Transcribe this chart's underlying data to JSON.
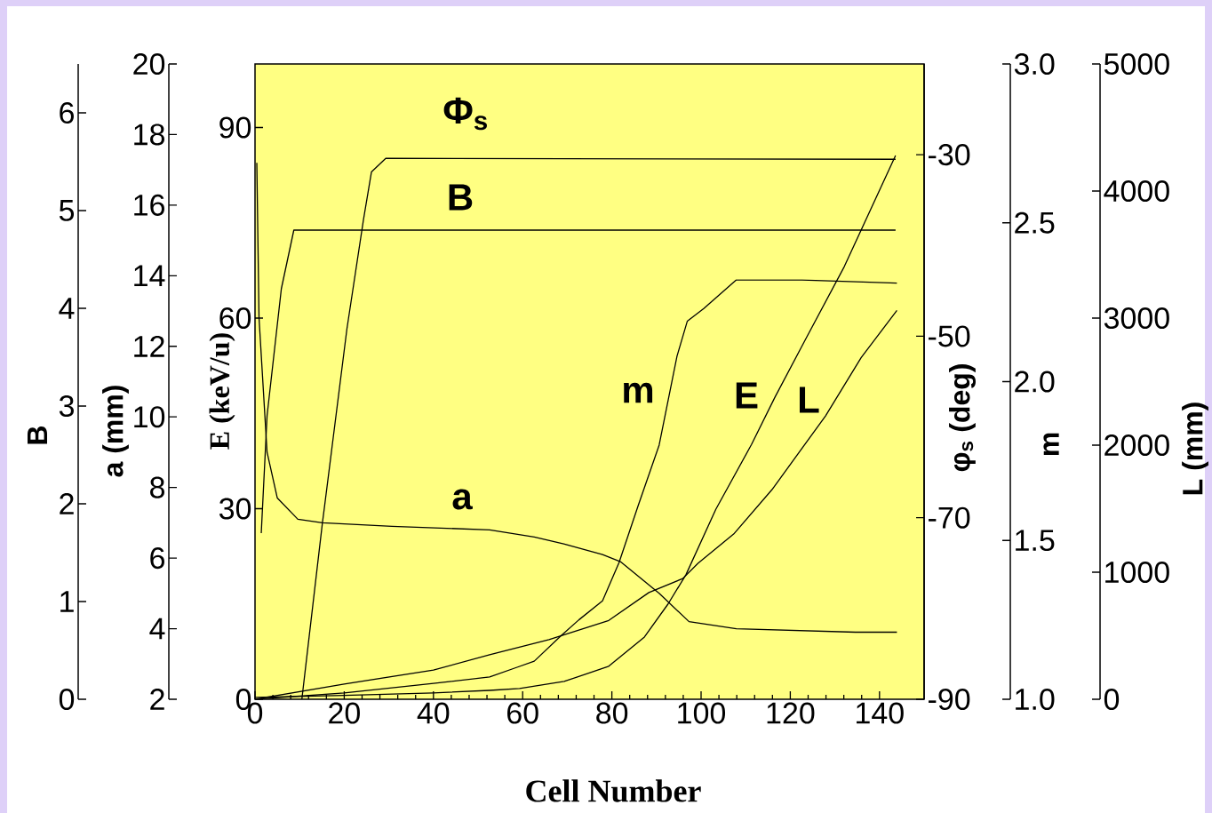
{
  "chart_data": [
    {
      "type": "line",
      "xlabel": "Cell Number",
      "xlim": [
        0,
        150
      ],
      "xticks": [
        0,
        20,
        40,
        60,
        80,
        100,
        120,
        140
      ],
      "ylabel": "E (keV/u)",
      "ylim": [
        0,
        100
      ],
      "yticks": [
        0,
        30,
        60,
        90
      ],
      "y2label": "φ$_{s}$ (deg)",
      "y2lim": [
        -90,
        -20
      ],
      "y2ticks": [
        -90,
        -70,
        -50,
        -30
      ],
      "y3label": "m",
      "y3lim": [
        1,
        3
      ],
      "y3ticks": [
        {
          "value": 1,
          "label": "1.0"
        },
        {
          "value": 1.5,
          "label": "1.5"
        },
        {
          "value": 2,
          "label": "2.0"
        },
        {
          "value": 2.5,
          "label": "2.5"
        },
        {
          "value": 3,
          "label": "3.0"
        }
      ],
      "series": [
        {
          "name": "Φ$_{s}$",
          "color": "#000000",
          "axis": "y2",
          "x": [
            10.5,
            15.1,
            15.6,
            20.6,
            24.3,
            26.1,
            29.3,
            143.6
          ],
          "values": [
            -90,
            -70.6,
            -68.7,
            -49.2,
            -37.2,
            -31.9,
            -30.4,
            -30.5
          ]
        },
        {
          "name": "m",
          "color": "#000000",
          "axis": "y3",
          "x": [
            0,
            20,
            40,
            52.6,
            58.6,
            62.6,
            68.6,
            72.6,
            77.9,
            81.6,
            85.9,
            90.6,
            92.6,
            94.6,
            96.9,
            100.6,
            107.9,
            122.6,
            143.9
          ],
          "values": [
            1.0,
            1.02,
            1.05,
            1.07,
            1.1,
            1.12,
            1.2,
            1.25,
            1.31,
            1.43,
            1.61,
            1.8,
            1.94,
            2.08,
            2.19,
            2.23,
            2.32,
            2.32,
            2.31
          ]
        },
        {
          "name": "E",
          "color": "#000000",
          "x": [
            0,
            20,
            40,
            52.6,
            59.3,
            69.3,
            79.3,
            87.3,
            92.6,
            96.6,
            103.3,
            111.3,
            116.6,
            123.3,
            132.1,
            143.6
          ],
          "values": [
            0.3,
            0.6,
            1.0,
            1.4,
            1.7,
            2.8,
            5.2,
            9.8,
            15,
            19.6,
            29.9,
            40.1,
            47.6,
            56.5,
            68.1,
            85.6
          ]
        }
      ]
    },
    {
      "type": "line",
      "xlim": [
        0,
        150
      ],
      "tick_labels": "y",
      "ylabel": "a (mm)",
      "ylim": [
        2,
        20
      ],
      "yticks": [
        2,
        4,
        6,
        8,
        10,
        12,
        14,
        16,
        18,
        20
      ],
      "y2label": "B",
      "y2lim": [
        0,
        6.5
      ],
      "y2ticks": [
        0,
        1,
        2,
        3,
        4,
        5,
        6
      ],
      "y3label": "L (mm)",
      "y3lim": [
        0,
        5000
      ],
      "y3ticks": [
        0,
        1000,
        2000,
        3000,
        4000,
        5000
      ],
      "series": [
        {
          "name": "B",
          "color": "#000000",
          "axis": "y2",
          "x": [
            1.4,
            2.7,
            5.9,
            8.7,
            10,
            143.6
          ],
          "values": [
            1.7,
            2.9,
            4.2,
            4.8,
            4.8,
            4.8
          ]
        },
        {
          "name": "a",
          "color": "#000000",
          "x": [
            0.4,
            0.9,
            2.7,
            5,
            9.6,
            15.1,
            30.7,
            52.6,
            62.6,
            69.2,
            77.9,
            81.9,
            90.6,
            97.3,
            107.9,
            134.6,
            143.9
          ],
          "values": [
            17.2,
            12.8,
            9.0,
            7.7,
            7.1,
            7.0,
            6.9,
            6.8,
            6.6,
            6.4,
            6.1,
            5.9,
            5.0,
            4.2,
            4.0,
            3.9,
            3.9
          ]
        },
        {
          "name": "L",
          "color": "#000000",
          "axis": "y3",
          "x": [
            0,
            20,
            40,
            52.6,
            65.9,
            79.3,
            88.3,
            95.9,
            99.3,
            107.3,
            115.9,
            127.9,
            135.9,
            143.9
          ],
          "values": [
            0,
            120,
            230,
            350,
            470,
            620,
            840,
            950,
            1070,
            1300,
            1650,
            2230,
            2690,
            3060
          ]
        }
      ]
    }
  ]
}
